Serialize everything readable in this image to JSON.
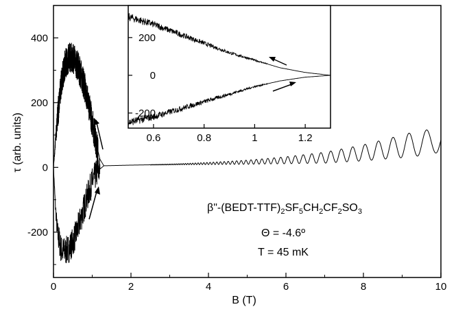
{
  "chart_data": [
    {
      "type": "line",
      "xlabel": "B (T)",
      "ylabel": "τ (arb. units)",
      "xlim": [
        0,
        10
      ],
      "ylim": [
        -340,
        500
      ],
      "xticks": [
        0,
        2,
        4,
        6,
        8,
        10
      ],
      "yticks": [
        -200,
        0,
        200,
        400
      ],
      "grid": false,
      "series": [
        {
          "sweep": "up",
          "x": [
            0.0,
            0.05,
            0.1,
            0.2,
            0.3,
            0.4,
            0.5,
            0.6,
            0.7,
            0.8,
            0.9,
            1.0,
            1.1,
            1.2,
            1.3,
            2,
            3,
            4,
            5,
            6,
            7,
            8,
            9,
            10
          ],
          "y": [
            0,
            -120,
            -200,
            -255,
            -260,
            -250,
            -230,
            -200,
            -160,
            -120,
            -80,
            -45,
            -20,
            -5,
            5,
            7,
            9,
            12,
            16,
            22,
            30,
            45,
            65,
            85
          ],
          "noise": "strong below 1.2 T; de Haas-van Alphen oscillations above 4 T"
        },
        {
          "sweep": "down",
          "x": [
            1.3,
            1.2,
            1.1,
            1.0,
            0.9,
            0.8,
            0.7,
            0.6,
            0.5,
            0.4,
            0.3,
            0.2,
            0.1,
            0.05,
            0.0
          ],
          "y": [
            5,
            25,
            75,
            140,
            200,
            250,
            290,
            320,
            340,
            340,
            320,
            260,
            150,
            80,
            0
          ]
        }
      ],
      "annotations": {
        "compound": {
          "pre": "β\"-(BEDT-TTF)",
          "s1": "2",
          "a": "SF",
          "s2": "5",
          "b": "CH",
          "s3": "2",
          "c": "CF",
          "s4": "2",
          "d": "SO",
          "s5": "3"
        },
        "angle": "Θ = -4.6º",
        "temperature": "T = 45 mK"
      }
    },
    {
      "type": "line",
      "role": "inset",
      "xlim": [
        0.5,
        1.3
      ],
      "ylim": [
        -280,
        370
      ],
      "xticks": [
        0.6,
        0.8,
        1.0,
        1.2
      ],
      "xtick_labels": [
        "0.6",
        "0.8",
        "1",
        "1.2"
      ],
      "yticks": [
        -200,
        0,
        200
      ],
      "series": [
        {
          "sweep": "down",
          "x": [
            0.5,
            0.6,
            0.7,
            0.8,
            0.9,
            1.0,
            1.05,
            1.1,
            1.2,
            1.3
          ],
          "y": [
            310,
            270,
            220,
            170,
            120,
            80,
            60,
            40,
            15,
            0
          ]
        },
        {
          "sweep": "up",
          "x": [
            0.5,
            0.6,
            0.7,
            0.8,
            0.9,
            1.0,
            1.05,
            1.1,
            1.2,
            1.3
          ],
          "y": [
            -250,
            -220,
            -180,
            -140,
            -100,
            -60,
            -45,
            -30,
            -10,
            0
          ]
        }
      ]
    }
  ]
}
